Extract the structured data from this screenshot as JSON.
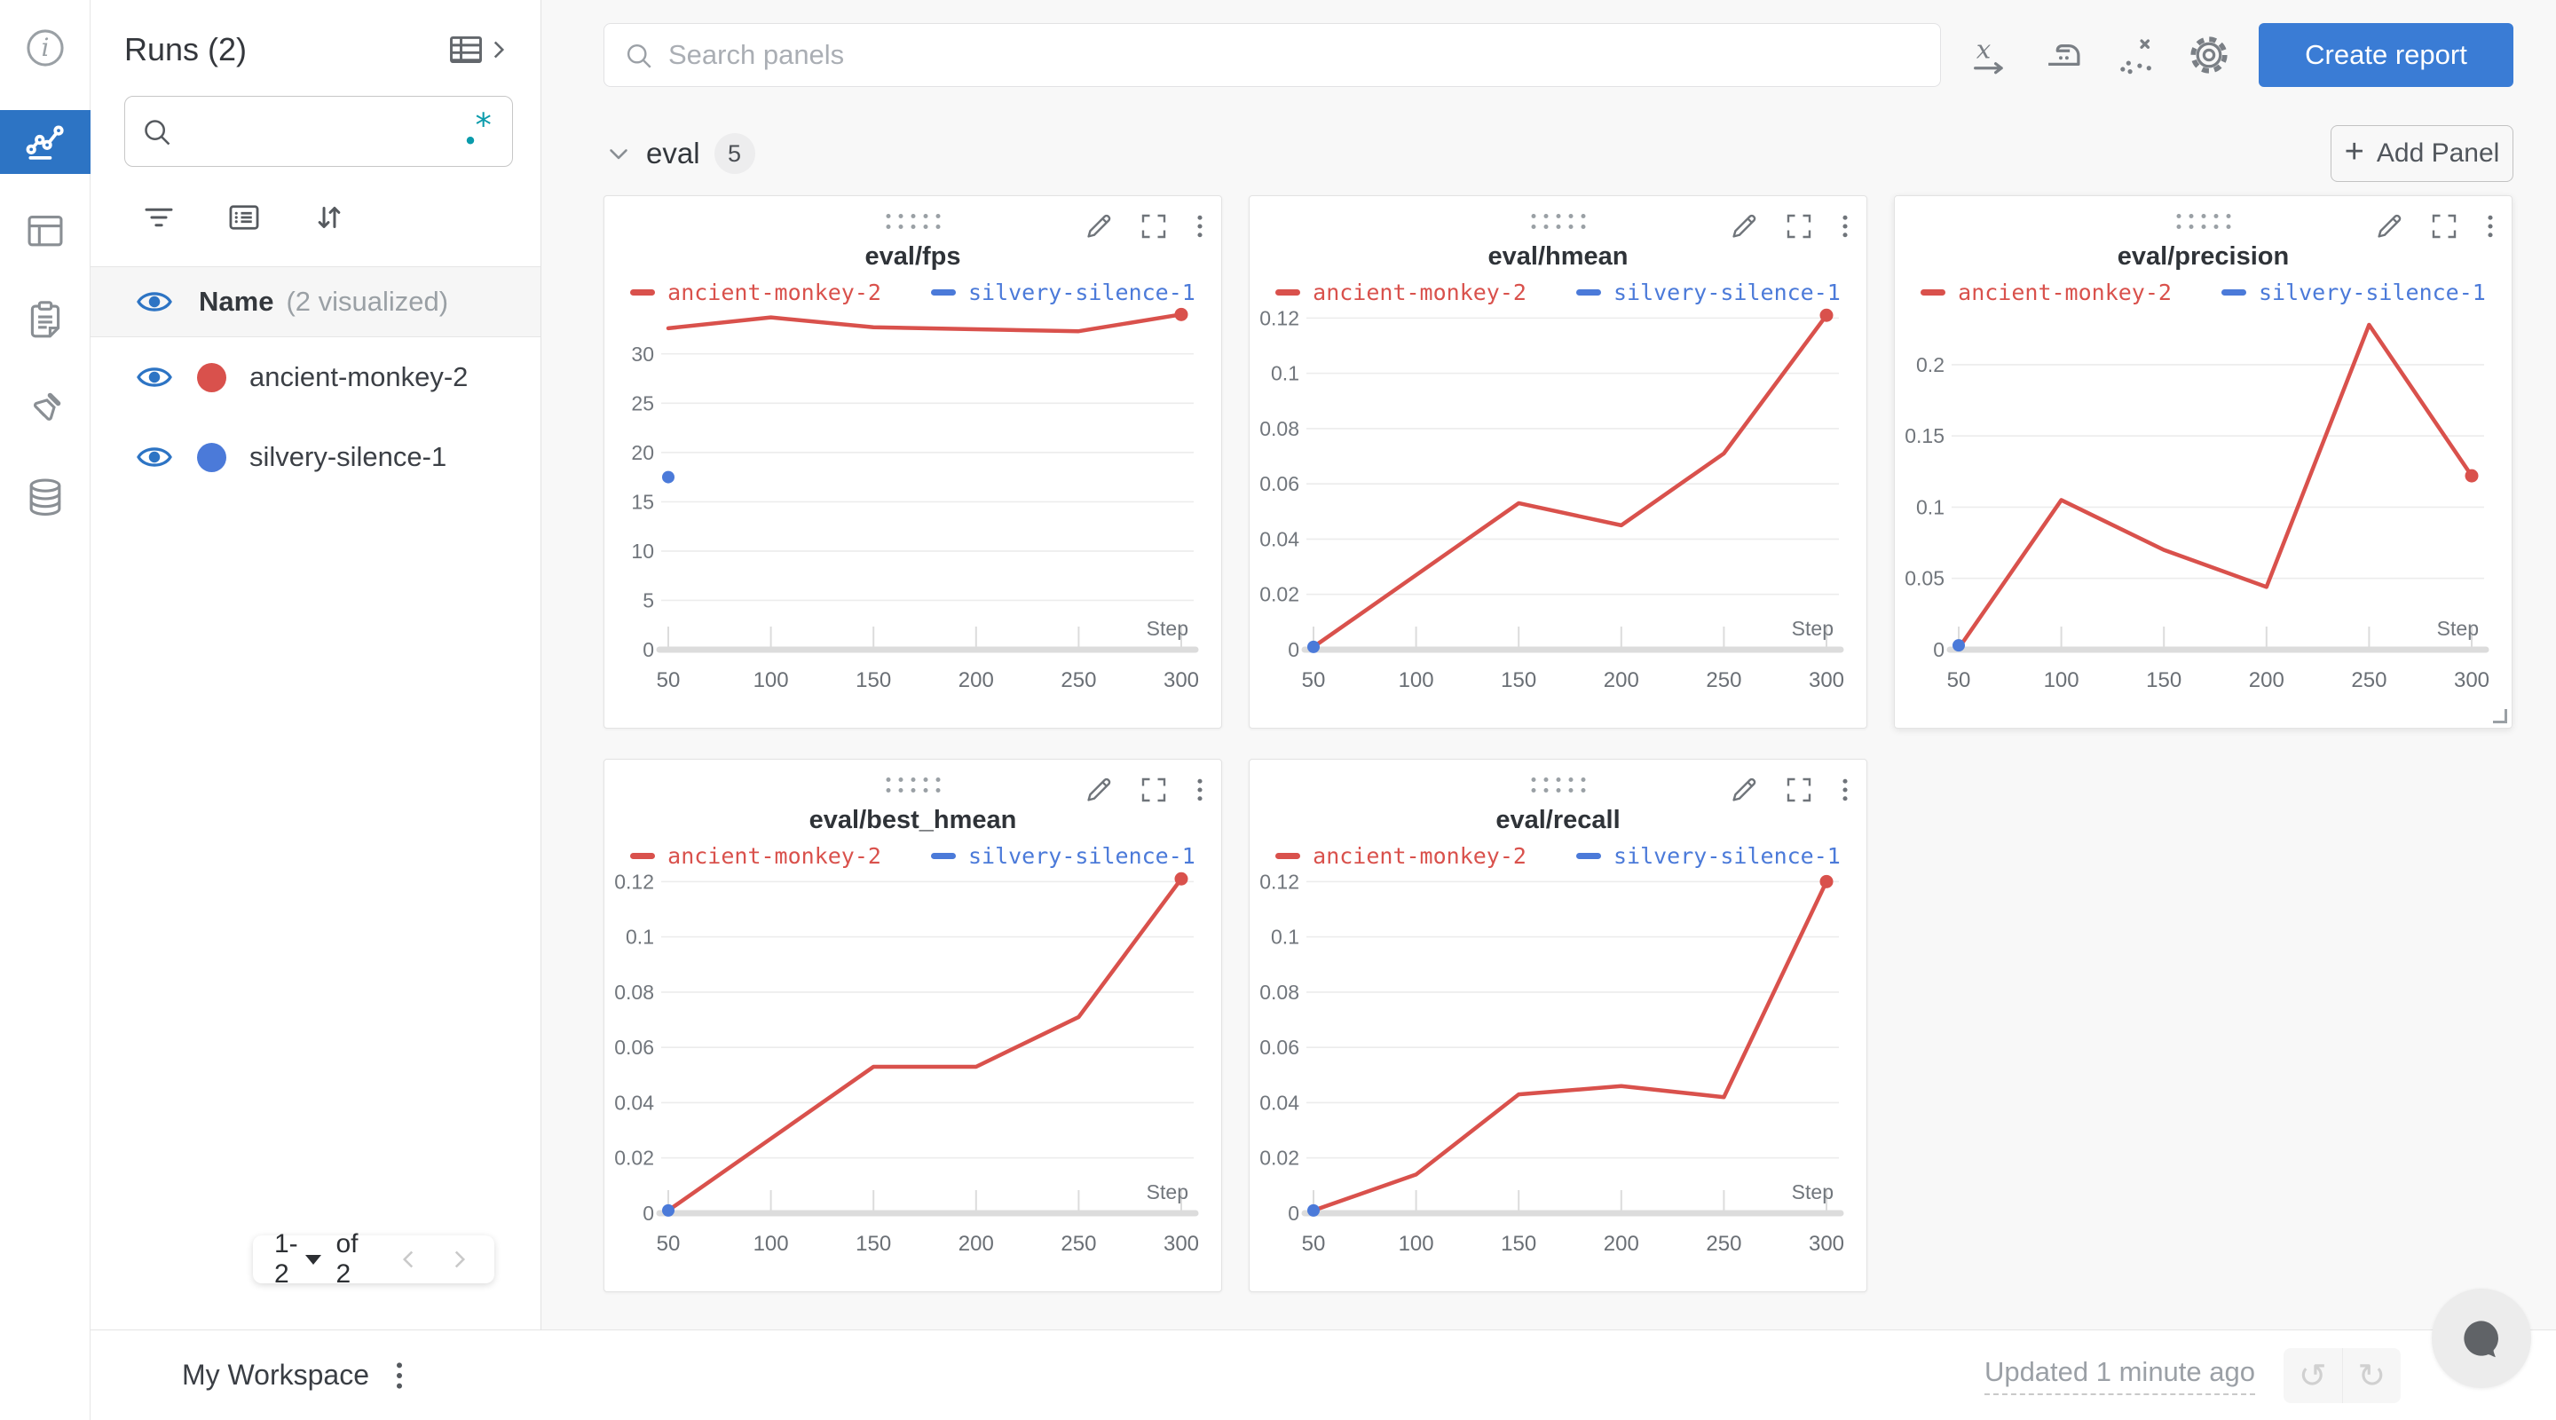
{
  "sidebar": {
    "title": "Runs (2)",
    "search": {
      "placeholder": ""
    },
    "name_row": {
      "label": "Name",
      "note": "(2 visualized)"
    },
    "runs": [
      {
        "name": "ancient-monkey-2",
        "color": "#d9514c"
      },
      {
        "name": "silvery-silence-1",
        "color": "#4b7ad9"
      }
    ],
    "pagination": {
      "range": "1-2",
      "of_label": "of 2"
    }
  },
  "topbar": {
    "search_placeholder": "Search panels",
    "create_report_label": "Create report"
  },
  "section": {
    "title": "eval",
    "count": "5",
    "add_panel_label": "Add Panel",
    "plus_glyph": "+"
  },
  "bottombar": {
    "workspace_label": "My Workspace",
    "updated_label": "Updated 1 minute ago",
    "undo_glyph": "↺",
    "redo_glyph": "↻"
  },
  "colors": {
    "accent_blue": "#2d74c4",
    "button_blue": "#3a7cd5",
    "run_red": "#d9514c",
    "run_blue": "#4b7ad9",
    "teal": "#0a9bab"
  },
  "chart_data": [
    {
      "type": "line",
      "title": "eval/fps",
      "xlabel": "Step",
      "xlim": [
        50,
        300
      ],
      "ylim": [
        0,
        37
      ],
      "x_ticks": [
        50,
        100,
        150,
        200,
        250,
        300
      ],
      "y_ticks": [
        0,
        5,
        10,
        15,
        20,
        25,
        30
      ],
      "y_tick_labels": [
        "0",
        "5",
        "10",
        "15",
        "20",
        "25",
        "30"
      ],
      "legend_position": "top",
      "grid": true,
      "hovered": false,
      "series": [
        {
          "name": "ancient-monkey-2",
          "color": "#d9514c",
          "x": [
            50,
            100,
            150,
            200,
            250,
            300
          ],
          "values": [
            32.6,
            33.7,
            32.7,
            32.5,
            32.3,
            34.0
          ],
          "end_dot": true
        },
        {
          "name": "silvery-silence-1",
          "color": "#4b7ad9",
          "x": [
            50
          ],
          "values": [
            17.5
          ],
          "end_dot": false
        }
      ]
    },
    {
      "type": "line",
      "title": "eval/hmean",
      "xlabel": "Step",
      "xlim": [
        50,
        300
      ],
      "ylim": [
        0,
        0.132
      ],
      "x_ticks": [
        50,
        100,
        150,
        200,
        250,
        300
      ],
      "y_ticks": [
        0,
        0.02,
        0.04,
        0.06,
        0.08,
        0.1,
        0.12
      ],
      "y_tick_labels": [
        "0",
        "0.02",
        "0.04",
        "0.06",
        "0.08",
        "0.1",
        "0.12"
      ],
      "legend_position": "top",
      "grid": true,
      "hovered": false,
      "series": [
        {
          "name": "ancient-monkey-2",
          "color": "#d9514c",
          "x": [
            50,
            100,
            150,
            200,
            250,
            300
          ],
          "values": [
            0.001,
            0.027,
            0.053,
            0.045,
            0.071,
            0.121
          ],
          "end_dot": true
        },
        {
          "name": "silvery-silence-1",
          "color": "#4b7ad9",
          "x": [
            50
          ],
          "values": [
            0.001
          ],
          "end_dot": false
        }
      ]
    },
    {
      "type": "line",
      "title": "eval/precision",
      "xlabel": "Step",
      "xlim": [
        50,
        300
      ],
      "ylim": [
        0,
        0.256
      ],
      "x_ticks": [
        50,
        100,
        150,
        200,
        250,
        300
      ],
      "y_ticks": [
        0,
        0.05,
        0.1,
        0.15,
        0.2
      ],
      "y_tick_labels": [
        "0",
        "0.05",
        "0.1",
        "0.15",
        "0.2"
      ],
      "legend_position": "top",
      "grid": true,
      "hovered": true,
      "series": [
        {
          "name": "ancient-monkey-2",
          "color": "#d9514c",
          "x": [
            50,
            100,
            150,
            200,
            250,
            300
          ],
          "values": [
            0.001,
            0.105,
            0.07,
            0.044,
            0.228,
            0.122
          ],
          "end_dot": true
        },
        {
          "name": "silvery-silence-1",
          "color": "#4b7ad9",
          "x": [
            50
          ],
          "values": [
            0.003
          ],
          "end_dot": false
        }
      ]
    },
    {
      "type": "line",
      "title": "eval/best_hmean",
      "xlabel": "Step",
      "xlim": [
        50,
        300
      ],
      "ylim": [
        0,
        0.132
      ],
      "x_ticks": [
        50,
        100,
        150,
        200,
        250,
        300
      ],
      "y_ticks": [
        0,
        0.02,
        0.04,
        0.06,
        0.08,
        0.1,
        0.12
      ],
      "y_tick_labels": [
        "0",
        "0.02",
        "0.04",
        "0.06",
        "0.08",
        "0.1",
        "0.12"
      ],
      "legend_position": "top",
      "grid": true,
      "hovered": false,
      "series": [
        {
          "name": "ancient-monkey-2",
          "color": "#d9514c",
          "x": [
            50,
            100,
            150,
            200,
            250,
            300
          ],
          "values": [
            0.001,
            0.027,
            0.053,
            0.053,
            0.071,
            0.121
          ],
          "end_dot": true
        },
        {
          "name": "silvery-silence-1",
          "color": "#4b7ad9",
          "x": [
            50
          ],
          "values": [
            0.001
          ],
          "end_dot": false
        }
      ]
    },
    {
      "type": "line",
      "title": "eval/recall",
      "xlabel": "Step",
      "xlim": [
        50,
        300
      ],
      "ylim": [
        0,
        0.132
      ],
      "x_ticks": [
        50,
        100,
        150,
        200,
        250,
        300
      ],
      "y_ticks": [
        0,
        0.02,
        0.04,
        0.06,
        0.08,
        0.1,
        0.12
      ],
      "y_tick_labels": [
        "0",
        "0.02",
        "0.04",
        "0.06",
        "0.08",
        "0.1",
        "0.12"
      ],
      "legend_position": "top",
      "grid": true,
      "hovered": false,
      "series": [
        {
          "name": "ancient-monkey-2",
          "color": "#d9514c",
          "x": [
            50,
            100,
            150,
            200,
            250,
            300
          ],
          "values": [
            0.001,
            0.014,
            0.043,
            0.046,
            0.042,
            0.12
          ],
          "end_dot": true
        },
        {
          "name": "silvery-silence-1",
          "color": "#4b7ad9",
          "x": [
            50
          ],
          "values": [
            0.001
          ],
          "end_dot": false
        }
      ]
    }
  ]
}
